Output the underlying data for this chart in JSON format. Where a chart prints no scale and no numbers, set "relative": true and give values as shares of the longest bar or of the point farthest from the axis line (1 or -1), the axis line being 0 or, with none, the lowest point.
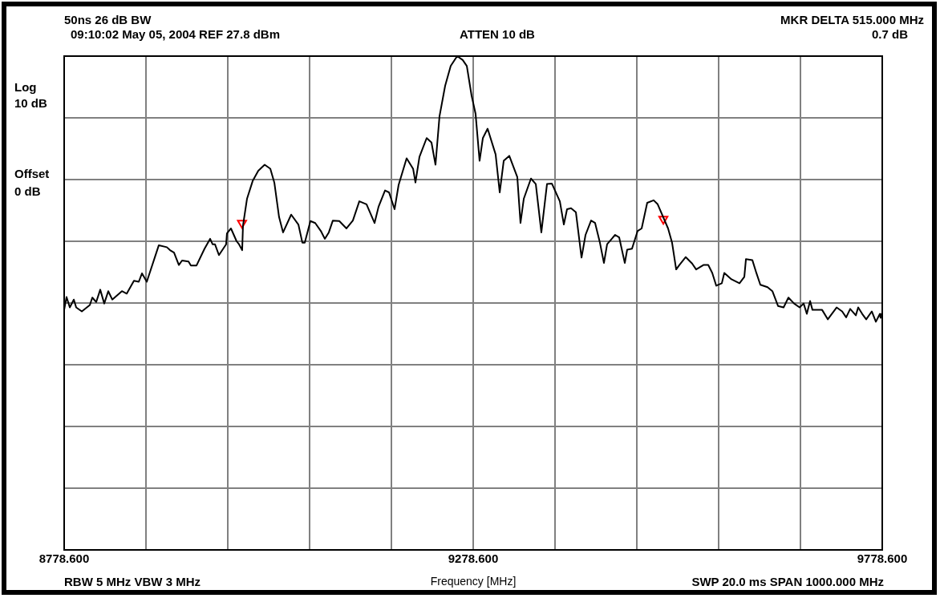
{
  "chart_data": {
    "type": "line",
    "title": "50ns 26 dB BW",
    "xlabel": "Frequency [MHz]",
    "annotations": [
      "09:10:02 May 05, 2004   REF 27.8 dBm",
      "ATTEN 10 dB",
      "MKR DELTA 515.000 MHz",
      "0.7 dB",
      "Log",
      "10 dB",
      "Offset",
      "0 dB",
      "RBW 5 MHz  VBW 3 MHz",
      "SWP 20.0 ms  SPAN 1000.000 MHz"
    ],
    "relative": true,
    "grid": true,
    "legend": false,
    "line_style": "solid",
    "xlim": [
      8778.6,
      9778.6
    ],
    "xticks": [
      {
        "value": 8778.6,
        "label": "8778.600"
      },
      {
        "value": 8878.6,
        "label": null
      },
      {
        "value": 8978.6,
        "label": null
      },
      {
        "value": 9078.6,
        "label": null
      },
      {
        "value": 9178.6,
        "label": null
      },
      {
        "value": 9278.6,
        "label": "9278.600"
      },
      {
        "value": 9378.6,
        "label": null
      },
      {
        "value": 9478.6,
        "label": null
      },
      {
        "value": 9578.6,
        "label": null
      },
      {
        "value": 9678.6,
        "label": null
      },
      {
        "value": 9778.6,
        "label": "9778.600"
      }
    ],
    "series": [
      {
        "color": "#000000",
        "marker": "none",
        "x": [
          8778.6,
          8781.5,
          8785.5,
          8790.4,
          8793.3,
          8800.2,
          8810,
          8813,
          8817.8,
          8822.7,
          8827.6,
          8832.5,
          8837.4,
          8849.2,
          8855.1,
          8863.9,
          8869.8,
          8873.7,
          8879.6,
          8894.3,
          8904.1,
          8908,
          8912.9,
          8918.8,
          8922.7,
          8930.6,
          8933.5,
          8940.4,
          8950.2,
          8957,
          8960,
          8962.9,
          8967.8,
          8976.6,
          8977.6,
          8982.5,
          8989.4,
          8992.3,
          8996.2,
          8997.2,
          9002.1,
          9009,
          9015.9,
          9023.7,
          9030.6,
          9035.5,
          9041.3,
          9046.2,
          9056.1,
          9064.9,
          9069.8,
          9072.7,
          9079.6,
          9085.5,
          9092.3,
          9097.2,
          9102.1,
          9107,
          9114.9,
          9123.7,
          9131.5,
          9139.4,
          9148.2,
          9158,
          9162.9,
          9170.8,
          9175.7,
          9182.5,
          9187.4,
          9197.2,
          9205.1,
          9208,
          9212.9,
          9221.7,
          9227.6,
          9232.5,
          9237.4,
          9244.3,
          9251.1,
          9259,
          9265.8,
          9270.8,
          9276.6,
          9281.5,
          9286.4,
          9290.4,
          9296.2,
          9306,
          9311,
          9315.9,
          9322.7,
          9332.5,
          9336.4,
          9340.4,
          9349.2,
          9355.1,
          9361.9,
          9368.8,
          9374.7,
          9384.5,
          9389.4,
          9393.3,
          9398.2,
          9404.1,
          9411,
          9415.9,
          9422.7,
          9427.6,
          9433.5,
          9438.4,
          9442.3,
          9452.1,
          9457,
          9463.9,
          9466.8,
          9472.7,
          9479.6,
          9484.5,
          9491.3,
          9499.2,
          9504.1,
          9516.8,
          9521.7,
          9526.7,
          9530.6,
          9538.4,
          9546.2,
          9551.1,
          9560,
          9565.9,
          9570.8,
          9575.7,
          9582.5,
          9585.5,
          9594.3,
          9604.1,
          9610,
          9612,
          9619.8,
          9624.7,
          9629.6,
          9638.4,
          9644.3,
          9651.2,
          9658,
          9663.9,
          9670.8,
          9677.6,
          9682.5,
          9686.4,
          9690.4,
          9693.3,
          9705.1,
          9712,
          9722.8,
          9729.6,
          9734.5,
          9739.4,
          9746.3,
          9749.2,
          9754.1,
          9759,
          9765.8,
          9770.8,
          9775.7,
          9776.6
        ],
        "values": [
          0.486,
          0.512,
          0.491,
          0.507,
          0.491,
          0.483,
          0.496,
          0.511,
          0.502,
          0.527,
          0.499,
          0.524,
          0.507,
          0.524,
          0.519,
          0.545,
          0.543,
          0.56,
          0.543,
          0.617,
          0.613,
          0.607,
          0.602,
          0.577,
          0.586,
          0.584,
          0.576,
          0.576,
          0.61,
          0.63,
          0.619,
          0.619,
          0.597,
          0.619,
          0.641,
          0.651,
          0.625,
          0.619,
          0.607,
          0.657,
          0.711,
          0.747,
          0.768,
          0.78,
          0.772,
          0.744,
          0.674,
          0.643,
          0.679,
          0.659,
          0.622,
          0.622,
          0.666,
          0.662,
          0.646,
          0.63,
          0.643,
          0.667,
          0.666,
          0.651,
          0.667,
          0.706,
          0.7,
          0.662,
          0.695,
          0.728,
          0.724,
          0.69,
          0.739,
          0.793,
          0.772,
          0.744,
          0.796,
          0.834,
          0.825,
          0.78,
          0.878,
          0.94,
          0.98,
          1,
          0.992,
          0.98,
          0.92,
          0.883,
          0.788,
          0.834,
          0.853,
          0.801,
          0.724,
          0.788,
          0.798,
          0.755,
          0.662,
          0.711,
          0.752,
          0.741,
          0.643,
          0.741,
          0.742,
          0.706,
          0.659,
          0.69,
          0.692,
          0.684,
          0.592,
          0.638,
          0.667,
          0.662,
          0.622,
          0.581,
          0.619,
          0.638,
          0.633,
          0.581,
          0.608,
          0.61,
          0.646,
          0.651,
          0.703,
          0.708,
          0.7,
          0.651,
          0.622,
          0.568,
          0.577,
          0.593,
          0.58,
          0.568,
          0.577,
          0.577,
          0.561,
          0.535,
          0.54,
          0.561,
          0.548,
          0.54,
          0.553,
          0.589,
          0.587,
          0.561,
          0.537,
          0.532,
          0.524,
          0.494,
          0.491,
          0.511,
          0.499,
          0.491,
          0.499,
          0.478,
          0.504,
          0.486,
          0.486,
          0.467,
          0.491,
          0.483,
          0.471,
          0.488,
          0.475,
          0.491,
          0.478,
          0.467,
          0.483,
          0.462,
          0.478,
          0.47
        ]
      },
      {
        "type": "scatter",
        "color": "#ff0000",
        "marker": "triangle",
        "x": [
          8996,
          9511
        ],
        "values": [
          0.662,
          0.67
        ]
      }
    ]
  }
}
